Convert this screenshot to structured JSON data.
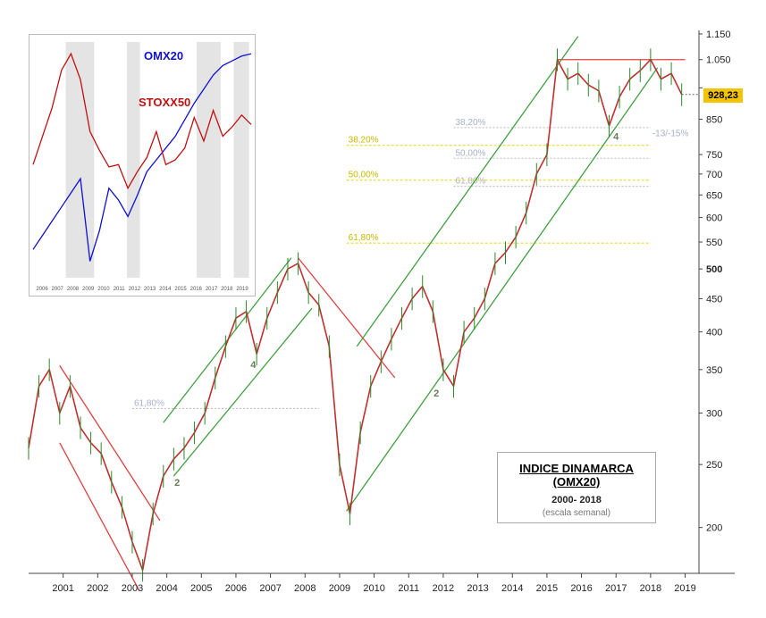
{
  "chart_data": [
    {
      "type": "line",
      "title": "INDICE DINAMARCA (OMX20)",
      "subtitle": "2000- 2018",
      "note": "(escala semanal)",
      "y_scale": "log",
      "ylim": [
        170,
        1150
      ],
      "xlim": [
        2000.0,
        2019.4
      ],
      "y_ticks": [
        200,
        250,
        300,
        350,
        400,
        450,
        500,
        550,
        600,
        650,
        700,
        750,
        850,
        950,
        1050,
        1150
      ],
      "y_tick_labels": [
        "200",
        "250",
        "300",
        "350",
        "400",
        "450",
        "500",
        "550",
        "600",
        "650",
        "700",
        "750",
        "850",
        "",
        "1.050",
        "1.150"
      ],
      "x_ticks": [
        2001,
        2002,
        2003,
        2004,
        2005,
        2006,
        2007,
        2008,
        2009,
        2010,
        2011,
        2012,
        2013,
        2014,
        2015,
        2016,
        2017,
        2018,
        2019
      ],
      "x": [
        2000.0,
        2000.3,
        2000.6,
        2000.9,
        2001.2,
        2001.5,
        2001.8,
        2002.1,
        2002.4,
        2002.7,
        2003.0,
        2003.3,
        2003.6,
        2003.9,
        2004.2,
        2004.5,
        2004.8,
        2005.1,
        2005.4,
        2005.7,
        2006.0,
        2006.3,
        2006.6,
        2006.9,
        2007.2,
        2007.5,
        2007.8,
        2008.1,
        2008.4,
        2008.7,
        2009.0,
        2009.3,
        2009.6,
        2009.9,
        2010.2,
        2010.5,
        2010.8,
        2011.1,
        2011.4,
        2011.7,
        2012.0,
        2012.3,
        2012.6,
        2012.9,
        2013.2,
        2013.5,
        2013.8,
        2014.1,
        2014.4,
        2014.7,
        2015.0,
        2015.3,
        2015.6,
        2015.9,
        2016.2,
        2016.5,
        2016.8,
        2017.1,
        2017.4,
        2017.7,
        2018.0,
        2018.3,
        2018.6,
        2018.9
      ],
      "values": [
        265,
        330,
        350,
        300,
        330,
        285,
        270,
        260,
        235,
        215,
        190,
        172,
        210,
        240,
        255,
        265,
        280,
        300,
        340,
        380,
        420,
        430,
        370,
        420,
        460,
        500,
        510,
        460,
        440,
        380,
        250,
        210,
        280,
        330,
        360,
        390,
        420,
        450,
        470,
        430,
        350,
        330,
        400,
        420,
        450,
        510,
        530,
        560,
        610,
        700,
        750,
        1050,
        980,
        1000,
        960,
        940,
        830,
        920,
        980,
        1010,
        1050,
        980,
        1000,
        928
      ],
      "last_price": "928,23",
      "annotations": {
        "fib_gray": [
          {
            "label": "61,80%",
            "value": 305
          },
          {
            "label": "38,20%",
            "value": 825
          },
          {
            "label": "50,00%",
            "value": 740
          },
          {
            "label": "61,80%",
            "value": 670
          }
        ],
        "fib_yellow": [
          {
            "label": "38,20%",
            "value": 775
          },
          {
            "label": "50,00%",
            "value": 685
          },
          {
            "label": "61,80%",
            "value": 548
          }
        ],
        "waves": [
          "2",
          "4",
          "2",
          "4"
        ],
        "target_note": "-13/-15%"
      }
    },
    {
      "type": "line",
      "title": "",
      "x_ticks": [
        2006,
        2007,
        2008,
        2009,
        2010,
        2011,
        2012,
        2013,
        2014,
        2015,
        2016,
        2017,
        2018,
        2019
      ],
      "series": [
        {
          "name": "OMX20",
          "color": "#1010d0",
          "values": [
            0.88,
            0.82,
            0.76,
            0.7,
            0.64,
            0.58,
            0.93,
            0.8,
            0.62,
            0.67,
            0.74,
            0.65,
            0.55,
            0.5,
            0.45,
            0.4,
            0.33,
            0.26,
            0.2,
            0.14,
            0.1,
            0.08,
            0.06,
            0.05
          ]
        },
        {
          "name": "STOXX50",
          "color": "#c01010",
          "values": [
            0.52,
            0.4,
            0.28,
            0.12,
            0.05,
            0.16,
            0.38,
            0.46,
            0.53,
            0.52,
            0.62,
            0.55,
            0.49,
            0.38,
            0.52,
            0.5,
            0.45,
            0.32,
            0.42,
            0.29,
            0.4,
            0.36,
            0.31,
            0.35
          ]
        }
      ]
    }
  ]
}
